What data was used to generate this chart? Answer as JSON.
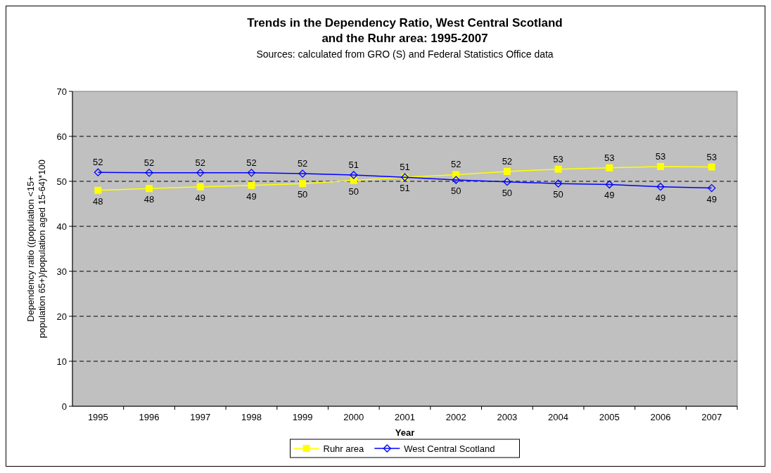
{
  "chart_data": {
    "type": "line",
    "title": "Trends in the Dependency Ratio, West Central Scotland\nand the Ruhr area: 1995-2007",
    "subtitle": "Sources: calculated from GRO (S) and Federal Statistics Office data",
    "xlabel": "Year",
    "ylabel": "Dependency ratio ((population <15+\npopulation 65+)/population aged 15-64)*100",
    "categories": [
      "1995",
      "1996",
      "1997",
      "1998",
      "1999",
      "2000",
      "2001",
      "2002",
      "2003",
      "2004",
      "2005",
      "2006",
      "2007"
    ],
    "series": [
      {
        "name": "Ruhr area",
        "color": "#ffff00",
        "marker": "square",
        "values": [
          48.0,
          48.4,
          48.8,
          49.1,
          49.5,
          50.2,
          50.9,
          51.5,
          52.2,
          52.7,
          53.0,
          53.3,
          53.2
        ],
        "value_labels": [
          "48",
          "48",
          "49",
          "49",
          "50",
          "50",
          "51",
          "52",
          "52",
          "53",
          "53",
          "53",
          "53"
        ]
      },
      {
        "name": "West Central Scotland",
        "color": "#0000ff",
        "marker": "diamond",
        "values": [
          52.0,
          51.9,
          51.9,
          51.9,
          51.7,
          51.4,
          50.9,
          50.3,
          49.9,
          49.5,
          49.3,
          48.8,
          48.5
        ],
        "value_labels": [
          "52",
          "52",
          "52",
          "52",
          "52",
          "51",
          "51",
          "50",
          "50",
          "50",
          "49",
          "49",
          "49"
        ]
      }
    ],
    "ylim": [
      0,
      70
    ],
    "yticks": [
      0,
      10,
      20,
      30,
      40,
      50,
      60,
      70
    ],
    "grid": "y",
    "legend": "bottom"
  }
}
